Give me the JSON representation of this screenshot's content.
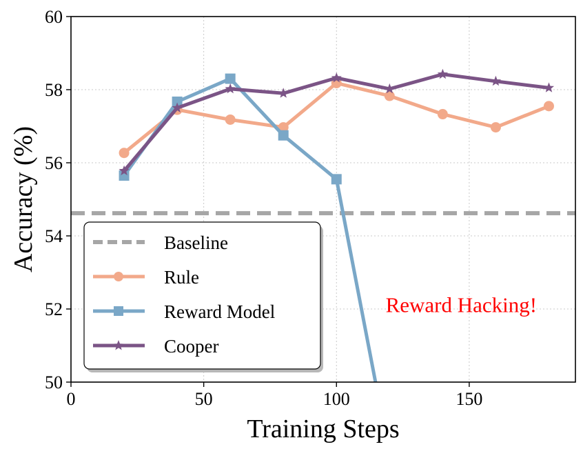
{
  "chart_data": {
    "type": "line",
    "xlabel": "Training Steps",
    "ylabel": "Accuracy (%)",
    "xlim": [
      0,
      190
    ],
    "ylim": [
      50,
      60
    ],
    "xticks": [
      0,
      50,
      100,
      150
    ],
    "yticks": [
      50,
      52,
      54,
      56,
      58,
      60
    ],
    "xtick_labels": [
      "0",
      "50",
      "100",
      "150"
    ],
    "ytick_labels": [
      "50",
      "52",
      "54",
      "56",
      "58",
      "60"
    ],
    "grid": true,
    "legend_position": "lower-left",
    "baseline": {
      "name": "Baseline",
      "value": 54.62,
      "color": "#a6a6a6",
      "style": "dashed"
    },
    "series": [
      {
        "name": "Rule",
        "color": "#f2a98a",
        "marker": "circle",
        "x": [
          20,
          40,
          60,
          80,
          100,
          120,
          140,
          160,
          180
        ],
        "values": [
          56.27,
          57.45,
          57.18,
          56.97,
          58.18,
          57.83,
          57.33,
          56.97,
          57.55
        ]
      },
      {
        "name": "Reward Model",
        "color": "#7aa7c7",
        "marker": "square",
        "x": [
          20,
          40,
          60,
          80,
          100,
          120
        ],
        "values": [
          55.65,
          57.67,
          58.3,
          56.75,
          55.55,
          48.0
        ]
      },
      {
        "name": "Cooper",
        "color": "#7b5486",
        "marker": "star",
        "x": [
          20,
          40,
          60,
          80,
          100,
          120,
          140,
          160,
          180
        ],
        "values": [
          55.78,
          57.5,
          58.02,
          57.9,
          58.32,
          58.02,
          58.42,
          58.23,
          58.05
        ]
      }
    ],
    "annotations": [
      {
        "text": "Reward Hacking!",
        "x": 147,
        "y": 52.1,
        "color": "#ff0000"
      }
    ]
  }
}
